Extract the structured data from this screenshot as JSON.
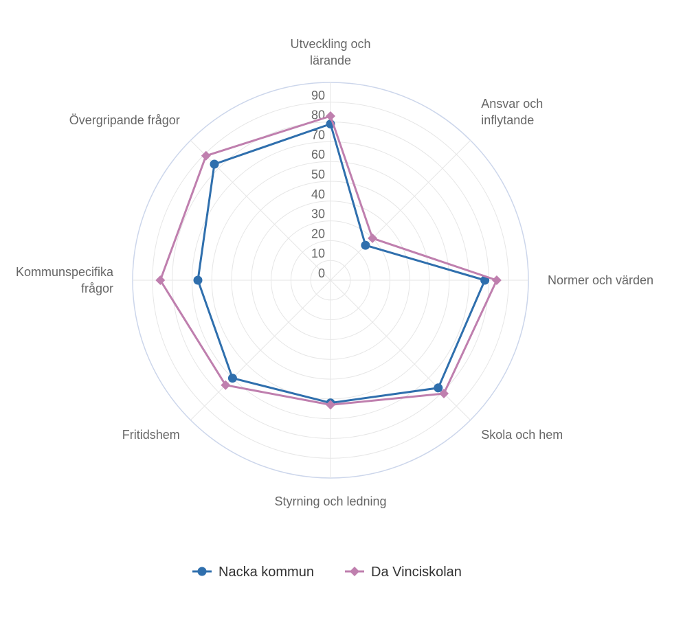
{
  "chart_data": {
    "type": "radar",
    "title": "",
    "categories": [
      [
        "Utveckling och",
        "lärande"
      ],
      [
        "Ansvar och",
        "inflytande"
      ],
      [
        "Normer och värden"
      ],
      [
        "Skola och hem"
      ],
      [
        "Styrning och ledning"
      ],
      [
        "Fritidshem"
      ],
      [
        "Kommunspecifika",
        "frågor"
      ],
      [
        "Övergripande frågor"
      ]
    ],
    "rlim": [
      0,
      100
    ],
    "r_ticks": [
      "0",
      "10",
      "20",
      "30",
      "40",
      "50",
      "60",
      "70",
      "80",
      "90"
    ],
    "r_tick_values": [
      0,
      10,
      20,
      30,
      40,
      50,
      60,
      70,
      80,
      90
    ],
    "grid": true,
    "legend_position": "bottom",
    "series": [
      {
        "name": "Nacka kommun",
        "color": "#2f6fad",
        "marker": "circle",
        "values": [
          79,
          25,
          78,
          77,
          62,
          70,
          67,
          83
        ]
      },
      {
        "name": "Da Vinciskolan",
        "color": "#bf7fae",
        "marker": "diamond",
        "values": [
          83,
          30,
          84,
          81,
          63,
          75,
          86,
          89
        ]
      }
    ]
  }
}
